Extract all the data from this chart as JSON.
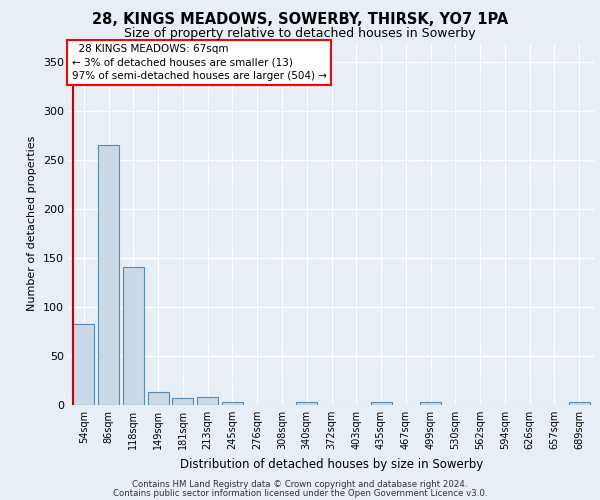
{
  "title_line1": "28, KINGS MEADOWS, SOWERBY, THIRSK, YO7 1PA",
  "title_line2": "Size of property relative to detached houses in Sowerby",
  "xlabel": "Distribution of detached houses by size in Sowerby",
  "ylabel": "Number of detached properties",
  "footer_line1": "Contains HM Land Registry data © Crown copyright and database right 2024.",
  "footer_line2": "Contains public sector information licensed under the Open Government Licence v3.0.",
  "categories": [
    "54sqm",
    "86sqm",
    "118sqm",
    "149sqm",
    "181sqm",
    "213sqm",
    "245sqm",
    "276sqm",
    "308sqm",
    "340sqm",
    "372sqm",
    "403sqm",
    "435sqm",
    "467sqm",
    "499sqm",
    "530sqm",
    "562sqm",
    "594sqm",
    "626sqm",
    "657sqm",
    "689sqm"
  ],
  "values": [
    83,
    265,
    141,
    13,
    7,
    8,
    3,
    0,
    0,
    3,
    0,
    0,
    3,
    0,
    3,
    0,
    0,
    0,
    0,
    0,
    3
  ],
  "bar_color": "#c9d9e8",
  "bar_edge_color": "#5a8ab0",
  "ylim": [
    0,
    370
  ],
  "yticks": [
    0,
    50,
    100,
    150,
    200,
    250,
    300,
    350
  ],
  "annotation_line1": "  28 KINGS MEADOWS: 67sqm",
  "annotation_line2": "← 3% of detached houses are smaller (13)",
  "annotation_line3": "97% of semi-detached houses are larger (504) →",
  "background_color": "#e8eef5",
  "plot_bg_color": "#e8eef5",
  "grid_color": "#ffffff",
  "red_line_color": "#cc0000",
  "red_line_x": -0.42
}
